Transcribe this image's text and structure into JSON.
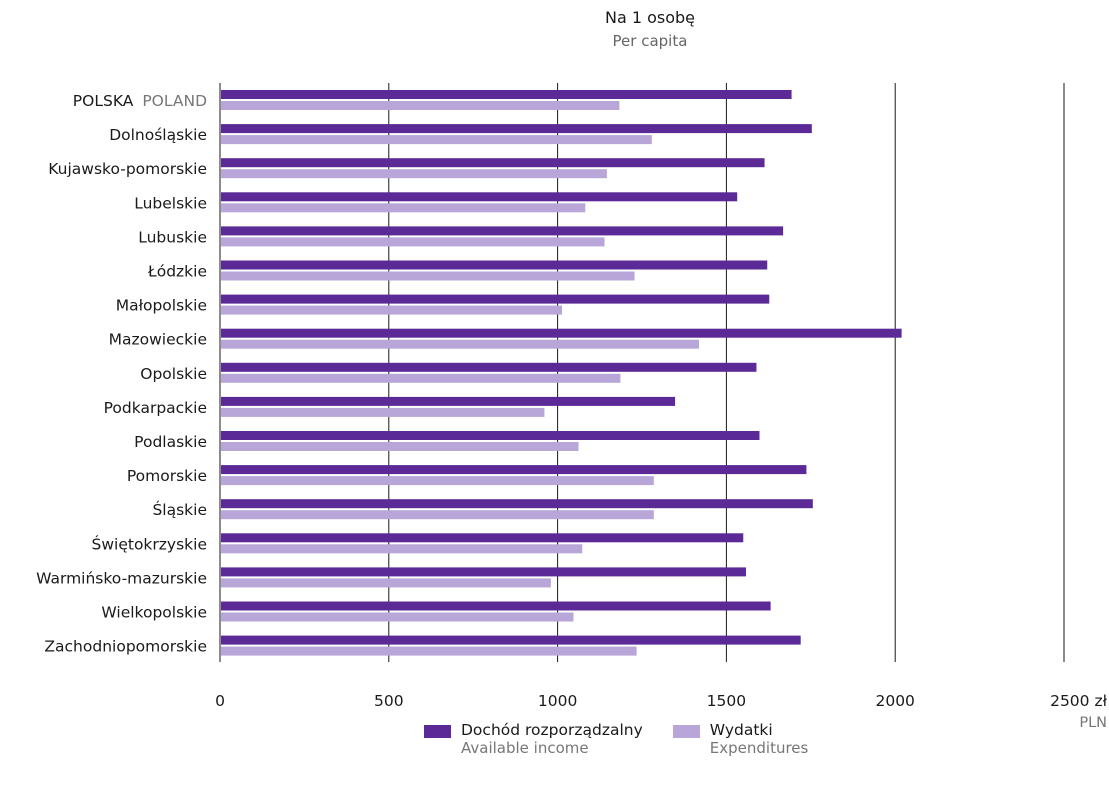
{
  "chart_data": {
    "type": "bar",
    "orientation": "horizontal",
    "title": "Na 1 osobę",
    "subtitle": "Per capita",
    "categories": [
      {
        "label": "POLSKA",
        "sub": "POLAND"
      },
      {
        "label": "Dolnośląskie",
        "sub": ""
      },
      {
        "label": "Kujawsko-pomorskie",
        "sub": ""
      },
      {
        "label": "Lubelskie",
        "sub": ""
      },
      {
        "label": "Lubuskie",
        "sub": ""
      },
      {
        "label": "Łódzkie",
        "sub": ""
      },
      {
        "label": "Małopolskie",
        "sub": ""
      },
      {
        "label": "Mazowieckie",
        "sub": ""
      },
      {
        "label": "Opolskie",
        "sub": ""
      },
      {
        "label": "Podkarpackie",
        "sub": ""
      },
      {
        "label": "Podlaskie",
        "sub": ""
      },
      {
        "label": "Pomorskie",
        "sub": ""
      },
      {
        "label": "Śląskie",
        "sub": ""
      },
      {
        "label": "Świętokrzyskie",
        "sub": ""
      },
      {
        "label": "Warmińsko-mazurskie",
        "sub": ""
      },
      {
        "label": "Wielkopolskie",
        "sub": ""
      },
      {
        "label": "Zachodniopomorskie",
        "sub": ""
      }
    ],
    "series": [
      {
        "name": "Dochód rozporządzalny",
        "name_sub": "Available income",
        "color": "#5b2a96",
        "values": [
          1693,
          1753,
          1613,
          1532,
          1668,
          1621,
          1627,
          2019,
          1589,
          1348,
          1598,
          1737,
          1756,
          1550,
          1558,
          1631,
          1720
        ]
      },
      {
        "name": "Wydatki",
        "name_sub": "Expenditures",
        "color": "#b7a6d7",
        "values": [
          1183,
          1279,
          1146,
          1082,
          1139,
          1228,
          1013,
          1419,
          1186,
          961,
          1062,
          1285,
          1285,
          1073,
          980,
          1047,
          1234
        ]
      }
    ],
    "xlim": [
      0,
      2500
    ],
    "xticks": [
      "0",
      "500",
      "1000",
      "1500",
      "2000",
      "2500 zł"
    ],
    "xticks_values": [
      0,
      500,
      1000,
      1500,
      2000,
      2500
    ],
    "unit_sub": "PLN",
    "grid": true,
    "legend_position": "bottom"
  }
}
